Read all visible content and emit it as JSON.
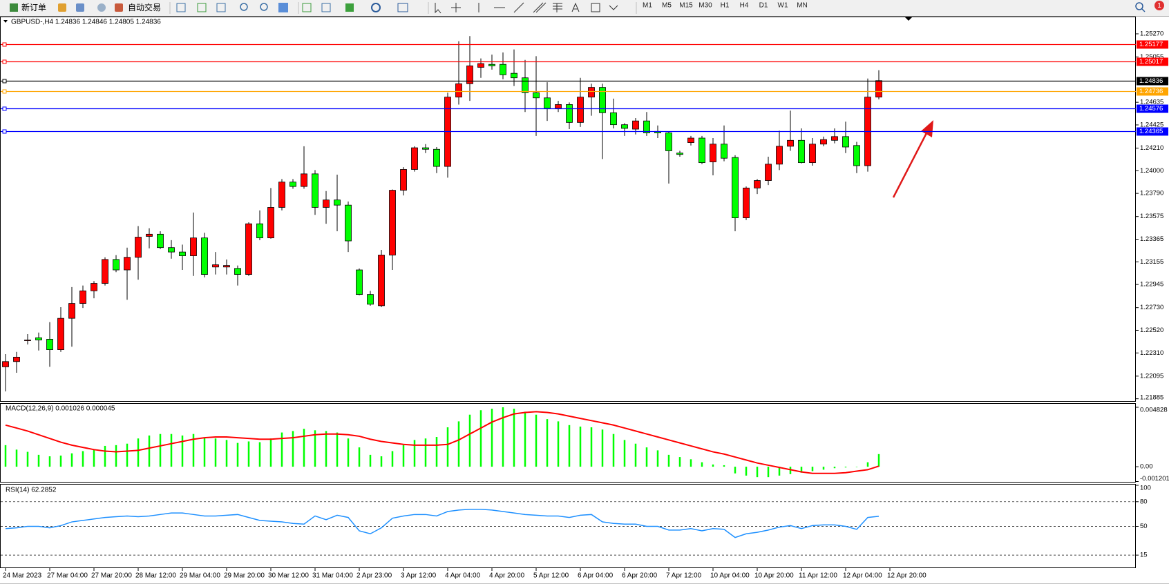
{
  "toolbar": {
    "new_order": "新订单",
    "auto_trading": "自动交易",
    "timeframes": [
      "M1",
      "M5",
      "M15",
      "M30",
      "H1",
      "H4",
      "D1",
      "W1",
      "MN"
    ],
    "notifications": "1"
  },
  "chart_data": [
    {
      "type": "candlestick",
      "title": "GBPUSD-,H4 1.24836 1.24846 1.24805 1.24836",
      "categories": [
        "24 Mar 2023",
        null,
        null,
        null,
        "27 Mar 04:00",
        null,
        null,
        null,
        "27 Mar 20:00",
        null,
        null,
        null,
        "28 Mar 12:00",
        null,
        null,
        null,
        "29 Mar 04:00",
        null,
        null,
        null,
        "29 Mar 20:00",
        null,
        null,
        null,
        "30 Mar 12:00",
        null,
        null,
        null,
        "31 Mar 04:00",
        null,
        null,
        null,
        "2 Apr 23:00",
        null,
        null,
        null,
        "3 Apr 12:00",
        null,
        null,
        null,
        "4 Apr 04:00",
        null,
        null,
        null,
        "4 Apr 20:00",
        null,
        null,
        null,
        "5 Apr 12:00",
        null,
        null,
        null,
        "6 Apr 04:00",
        null,
        null,
        null,
        "6 Apr 20:00",
        null,
        null,
        null,
        "7 Apr 12:00",
        null,
        null,
        null,
        "10 Apr 04:00",
        null,
        null,
        null,
        "10 Apr 20:00",
        null,
        null,
        null,
        "11 Apr 12:00",
        null,
        null,
        null,
        "12 Apr 04:00",
        null,
        null,
        null,
        "12 Apr 20:00"
      ],
      "open": [
        1.22181,
        1.2223,
        1.2243,
        1.22451,
        1.22437,
        1.2234,
        1.22631,
        1.22769,
        1.22886,
        1.22955,
        1.23177,
        1.2308,
        1.23197,
        1.23391,
        1.23411,
        1.23287,
        1.23246,
        1.23211,
        1.23377,
        1.23107,
        1.23107,
        1.23094,
        1.23038,
        1.23508,
        1.23377,
        1.2366,
        1.23895,
        1.23854,
        1.23971,
        1.2366,
        1.23729,
        1.23681,
        1.2308,
        1.22852,
        1.22748,
        1.23218,
        1.23819,
        1.24012,
        1.24213,
        1.24199,
        1.2404,
        1.24683,
        1.24807,
        1.24959,
        1.24987,
        1.24987,
        1.24904,
        1.24862,
        1.24724,
        1.24676,
        1.24579,
        1.24614,
        1.24448,
        1.24683,
        1.24773,
        1.24538,
        1.24427,
        1.24386,
        1.24462,
        1.24365,
        1.24351,
        1.24164,
        1.24261,
        1.24303,
        1.24082,
        1.24247,
        1.24123,
        1.23563,
        1.2384,
        1.23909,
        1.24061,
        1.24227,
        1.24282,
        1.24075,
        1.24247,
        1.24282,
        1.24317,
        1.24234,
        1.24047,
        1.24683,
        null
      ],
      "high": [
        1.22299,
        1.2232,
        1.22485,
        1.22499,
        1.22596,
        1.22734,
        1.22921,
        1.22935,
        1.22976,
        1.23197,
        1.23218,
        1.23287,
        1.23487,
        1.23467,
        1.23439,
        1.23356,
        1.23315,
        1.23612,
        1.23425,
        1.23246,
        1.23177,
        1.23121,
        1.23522,
        1.23632,
        1.2384,
        1.23923,
        1.23923,
        1.24227,
        1.24006,
        1.23812,
        1.23964,
        1.23715,
        1.23094,
        1.22886,
        1.23266,
        1.23826,
        1.24033,
        1.24227,
        1.24247,
        1.2422,
        1.24724,
        1.25201,
        1.25249,
        1.25042,
        1.25077,
        1.25097,
        1.25125,
        1.25028,
        1.25063,
        1.24821,
        1.24648,
        1.24634,
        1.24862,
        1.24807,
        1.24807,
        1.24669,
        1.24441,
        1.24489,
        1.24545,
        1.2442,
        1.24365,
        1.24185,
        1.24323,
        1.24323,
        1.24303,
        1.2442,
        1.24144,
        1.23854,
        1.23923,
        1.2413,
        1.24372,
        1.24558,
        1.24393,
        1.24303,
        1.24317,
        1.24393,
        1.24455,
        1.24268,
        1.24855,
        1.24932,
        null
      ],
      "low": [
        1.21953,
        1.22126,
        1.22389,
        1.22333,
        1.22181,
        1.2232,
        1.22368,
        1.22727,
        1.22817,
        1.22935,
        1.23059,
        1.22803,
        1.2299,
        1.2328,
        1.23273,
        1.23184,
        1.2308,
        1.23024,
        1.23011,
        1.23038,
        1.23038,
        1.22935,
        1.23024,
        1.23356,
        1.2337,
        1.23632,
        1.23833,
        1.23833,
        1.23591,
        1.23508,
        1.23439,
        1.23246,
        1.22845,
        1.22748,
        1.22734,
        1.2308,
        1.23771,
        1.23992,
        1.24164,
        1.23978,
        1.23936,
        1.24614,
        1.24648,
        1.24862,
        1.24938,
        1.24849,
        1.24786,
        1.24545,
        1.24323,
        1.24462,
        1.24545,
        1.24386,
        1.24406,
        1.2451,
        1.24109,
        1.24393,
        1.24323,
        1.24337,
        1.24323,
        1.24303,
        1.23881,
        1.2413,
        1.24234,
        1.24061,
        1.23957,
        1.24088,
        1.23439,
        1.23543,
        1.23784,
        1.23867,
        1.24006,
        1.24185,
        1.24068,
        1.24047,
        1.24227,
        1.24254,
        1.24164,
        1.23978,
        1.23992,
        1.24662,
        null
      ],
      "close": [
        1.2223,
        1.22271,
        1.2243,
        1.2243,
        1.2234,
        1.22631,
        1.22769,
        1.22886,
        1.22955,
        1.23177,
        1.2308,
        1.23197,
        1.23384,
        1.23411,
        1.23287,
        1.23246,
        1.23211,
        1.23377,
        1.23038,
        1.23128,
        1.23121,
        1.23038,
        1.23508,
        1.23377,
        1.2366,
        1.23895,
        1.23854,
        1.23971,
        1.2366,
        1.23729,
        1.23681,
        1.23349,
        1.22852,
        1.22762,
        1.23218,
        1.23819,
        1.24012,
        1.24213,
        1.24199,
        1.2404,
        1.24683,
        1.24807,
        1.24973,
        1.24994,
        1.24973,
        1.2489,
        1.24862,
        1.24724,
        1.24676,
        1.24579,
        1.24614,
        1.24448,
        1.24683,
        1.24773,
        1.24538,
        1.24427,
        1.24393,
        1.24462,
        1.24351,
        1.24351,
        1.24185,
        1.24151,
        1.24303,
        1.24075,
        1.24247,
        1.24116,
        1.23563,
        1.2384,
        1.23909,
        1.24061,
        1.24227,
        1.24282,
        1.24075,
        1.24247,
        1.24289,
        1.24317,
        1.2422,
        1.24047,
        1.24683,
        1.24836,
        null
      ],
      "up_color": "#ff0000",
      "down_color": "#00ff00",
      "ylim": [
        1.2187,
        1.2543
      ],
      "yticks": [
        {
          "value": 1.2527,
          "label": "1.25270"
        },
        1.25055,
        1.24635,
        1.24425,
        {
          "value": 1.2421,
          "label": "1.24210"
        },
        {
          "value": 1.24,
          "label": "1.24000"
        },
        {
          "value": 1.2379,
          "label": "1.23790"
        },
        1.23575,
        1.23365,
        1.23155,
        1.22945,
        {
          "value": 1.2273,
          "label": "1.22730"
        },
        {
          "value": 1.2252,
          "label": "1.22520"
        },
        {
          "value": 1.2231,
          "label": "1.22310"
        },
        1.22095,
        1.21885
      ],
      "levels": [
        {
          "value": 1.25177,
          "color": "#ff0000"
        },
        {
          "value": 1.25017,
          "color": "#ff0000"
        },
        {
          "value": 1.24836,
          "color": "#000000"
        },
        {
          "value": 1.24736,
          "color": "#ffa500"
        },
        {
          "value": 1.24576,
          "color": "#0000ff"
        },
        {
          "value": 1.24365,
          "color": "#0000ff"
        }
      ]
    },
    {
      "type": "macd",
      "title": "MACD(12,26,9) 0.001026 0.000045",
      "values": [
        0.001752,
        0.001389,
        0.001208,
        0.000966,
        0.000846,
        0.000906,
        0.001087,
        0.001268,
        0.001389,
        0.001691,
        0.001752,
        0.001872,
        0.002295,
        0.002537,
        0.002658,
        0.002658,
        0.002537,
        0.002658,
        0.002356,
        0.002295,
        0.002174,
        0.001933,
        0.002054,
        0.001993,
        0.002295,
        0.002778,
        0.002899,
        0.00308,
        0.00296,
        0.002899,
        0.002778,
        0.002295,
        0.00157,
        0.000966,
        0.000846,
        0.001268,
        0.001752,
        0.002174,
        0.002295,
        0.002416,
        0.003201,
        0.003684,
        0.004228,
        0.00459,
        0.004711,
        0.004828,
        0.004711,
        0.00447,
        0.004228,
        0.003866,
        0.003684,
        0.003382,
        0.003262,
        0.003201,
        0.00302,
        0.002658,
        0.002174,
        0.001872,
        0.00157,
        0.001329,
        0.000966,
        0.000785,
        0.000604,
        0.000362,
        0.000181,
        0.000121,
        -0.000544,
        -0.000725,
        -0.000846,
        -0.000846,
        -0.000725,
        -0.000604,
        -0.000483,
        -0.000362,
        -0.000242,
        -0.000121,
        -6e-05,
        0,
        0.000362,
        0.001026,
        null
      ],
      "color": "#00ff00",
      "signal": [
        0.003382,
        0.003141,
        0.002899,
        0.002597,
        0.002295,
        0.001993,
        0.001752,
        0.00157,
        0.001389,
        0.001268,
        0.001208,
        0.001268,
        0.001329,
        0.00151,
        0.001691,
        0.001872,
        0.002054,
        0.002235,
        0.002356,
        0.002416,
        0.002416,
        0.002356,
        0.002295,
        0.002235,
        0.002235,
        0.002295,
        0.002356,
        0.002476,
        0.002597,
        0.002658,
        0.002658,
        0.002597,
        0.002476,
        0.002235,
        0.002054,
        0.001933,
        0.001812,
        0.001752,
        0.001752,
        0.001752,
        0.001812,
        0.002174,
        0.002658,
        0.003141,
        0.003624,
        0.003986,
        0.004288,
        0.004409,
        0.00447,
        0.004409,
        0.004288,
        0.004107,
        0.003926,
        0.003745,
        0.003564,
        0.003382,
        0.003141,
        0.002899,
        0.002658,
        0.002416,
        0.002174,
        0.001933,
        0.001691,
        0.00145,
        0.001208,
        0.001027,
        0.000785,
        0.000544,
        0.000302,
        0.000121,
        -6e-05,
        -0.000242,
        -0.000423,
        -0.000544,
        -0.000544,
        -0.000544,
        -0.000483,
        -0.000362,
        -0.000242,
        4.5e-05,
        null
      ],
      "signal_color": "#ff0000",
      "ylim": [
        -0.001201,
        0.004828
      ],
      "yticks": [
        0.004828,
        {
          "value": 0,
          "label": "0.00"
        },
        -0.001201
      ]
    },
    {
      "type": "line",
      "title": "RSI(14) 62.2852",
      "values": [
        47.29,
        48.19,
        50,
        50,
        48.19,
        50.9,
        55.42,
        57.22,
        59.03,
        60.83,
        61.73,
        62.64,
        61.73,
        62.64,
        64.44,
        66.25,
        66.25,
        64.44,
        62.64,
        62.64,
        63.54,
        64.44,
        60.83,
        57.22,
        56.32,
        55.42,
        53.61,
        52.71,
        62.64,
        58.12,
        63.54,
        60.83,
        44.58,
        40.97,
        48.19,
        59.93,
        62.64,
        64.44,
        64.44,
        62.64,
        68.05,
        69.86,
        70.76,
        70.76,
        69.86,
        68.05,
        66.25,
        64.44,
        63.54,
        62.64,
        62.64,
        60.83,
        63.54,
        64.44,
        55.42,
        53.61,
        52.71,
        52.71,
        50,
        50,
        45.49,
        45.49,
        47.29,
        44.58,
        47.29,
        46.39,
        36.46,
        40.97,
        42.78,
        45.49,
        49.1,
        50.9,
        47.29,
        50.9,
        51.81,
        51.81,
        50,
        46.39,
        60.83,
        62.2852,
        null
      ],
      "color": "#1e90ff",
      "ylim": [
        0,
        100
      ],
      "yticks": [
        100,
        80,
        50,
        15
      ],
      "grid": "dashed"
    }
  ]
}
